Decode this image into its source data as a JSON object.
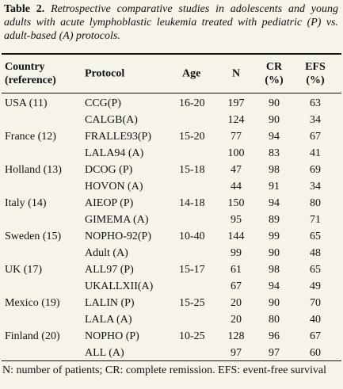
{
  "caption": {
    "label": "Table 2.",
    "text": "Retrospective comparative studies in adolescents and young adults with acute lymphoblastic leukemia treated with pediatric (P) vs. adult-based (A) protocols."
  },
  "table": {
    "header": [
      "Country (reference)",
      "Protocol",
      "Age",
      "N",
      "CR (%)",
      "EFS (%)"
    ],
    "groups": [
      {
        "country": "USA (11)",
        "age": "16-20",
        "rows": [
          {
            "protocol": "CCG(P)",
            "n": 197,
            "cr": 90,
            "efs": 63
          },
          {
            "protocol": "CALGB(A)",
            "n": 124,
            "cr": 90,
            "efs": 34
          }
        ]
      },
      {
        "country": "France (12)",
        "age": "15-20",
        "rows": [
          {
            "protocol": "FRALLE93(P)",
            "n": 77,
            "cr": 94,
            "efs": 67
          },
          {
            "protocol": "LALA94 (A)",
            "n": 100,
            "cr": 83,
            "efs": 41
          }
        ]
      },
      {
        "country": "Holland (13)",
        "age": "15-18",
        "rows": [
          {
            "protocol": "DCOG (P)",
            "n": 47,
            "cr": 98,
            "efs": 69
          },
          {
            "protocol": "HOVON (A)",
            "n": 44,
            "cr": 91,
            "efs": 34
          }
        ]
      },
      {
        "country": "Italy (14)",
        "age": "14-18",
        "rows": [
          {
            "protocol": "AIEOP (P)",
            "n": 150,
            "cr": 94,
            "efs": 80
          },
          {
            "protocol": "GIMEMA (A)",
            "n": 95,
            "cr": 89,
            "efs": 71
          }
        ]
      },
      {
        "country": "Sweden (15)",
        "age": "10-40",
        "rows": [
          {
            "protocol": "NOPHO-92(P)",
            "n": 144,
            "cr": 99,
            "efs": 65
          },
          {
            "protocol": "Adult (A)",
            "n": 99,
            "cr": 90,
            "efs": 48
          }
        ]
      },
      {
        "country": "UK (17)",
        "age": "15-17",
        "rows": [
          {
            "protocol": "ALL97 (P)",
            "n": 61,
            "cr": 98,
            "efs": 65
          },
          {
            "protocol": "UKALLXII(A)",
            "n": 67,
            "cr": 94,
            "efs": 49
          }
        ]
      },
      {
        "country": "Mexico (19)",
        "age": "15-25",
        "rows": [
          {
            "protocol": "LALIN (P)",
            "n": 20,
            "cr": 90,
            "efs": 70
          },
          {
            "protocol": "LALA (A)",
            "n": 20,
            "cr": 80,
            "efs": 40
          }
        ]
      },
      {
        "country": "Finland (20)",
        "age": "10-25",
        "rows": [
          {
            "protocol": "NOPHO (P)",
            "n": 128,
            "cr": 96,
            "efs": 67
          },
          {
            "protocol": "ALL (A)",
            "n": 97,
            "cr": 97,
            "efs": 60
          }
        ]
      }
    ]
  },
  "footnote": "N: number of patients; CR: complete remission. EFS: event-free survival"
}
